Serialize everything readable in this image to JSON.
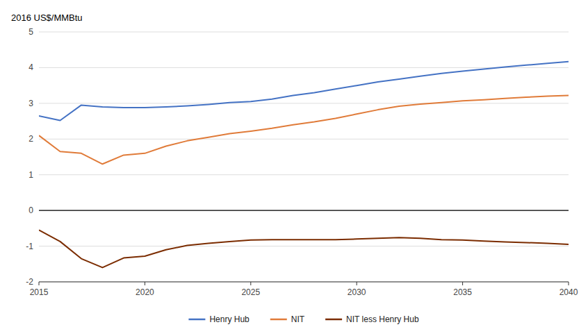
{
  "chart_data": {
    "type": "line",
    "y_label": "2016 US$/MMBtu",
    "x": [
      2015,
      2016,
      2017,
      2018,
      2019,
      2020,
      2021,
      2022,
      2023,
      2024,
      2025,
      2026,
      2027,
      2028,
      2029,
      2030,
      2031,
      2032,
      2033,
      2034,
      2035,
      2036,
      2037,
      2038,
      2039,
      2040
    ],
    "xlim": [
      2015,
      2040
    ],
    "xticks": [
      2015,
      2020,
      2025,
      2030,
      2035,
      2040
    ],
    "ylim": [
      -2,
      5
    ],
    "yticks": [
      -2,
      -1,
      0,
      1,
      2,
      3,
      4,
      5
    ],
    "grid": true,
    "legend": "bottom",
    "series": [
      {
        "name": "Henry Hub",
        "color": "#4472C4",
        "values": [
          2.65,
          2.52,
          2.95,
          2.9,
          2.88,
          2.88,
          2.9,
          2.93,
          2.97,
          3.02,
          3.05,
          3.12,
          3.22,
          3.3,
          3.4,
          3.5,
          3.6,
          3.68,
          3.76,
          3.84,
          3.9,
          3.96,
          4.02,
          4.07,
          4.12,
          4.17
        ]
      },
      {
        "name": "NIT",
        "color": "#E07B39",
        "values": [
          2.1,
          1.65,
          1.6,
          1.3,
          1.55,
          1.6,
          1.8,
          1.95,
          2.05,
          2.15,
          2.22,
          2.3,
          2.4,
          2.48,
          2.58,
          2.7,
          2.82,
          2.92,
          2.98,
          3.02,
          3.07,
          3.1,
          3.14,
          3.17,
          3.2,
          3.22
        ]
      },
      {
        "name": "NIT less Henry Hub",
        "color": "#7B2C00",
        "values": [
          -0.55,
          -0.87,
          -1.35,
          -1.6,
          -1.33,
          -1.28,
          -1.1,
          -0.98,
          -0.92,
          -0.87,
          -0.83,
          -0.82,
          -0.82,
          -0.82,
          -0.82,
          -0.8,
          -0.78,
          -0.76,
          -0.78,
          -0.82,
          -0.83,
          -0.86,
          -0.88,
          -0.9,
          -0.92,
          -0.95
        ]
      }
    ]
  }
}
